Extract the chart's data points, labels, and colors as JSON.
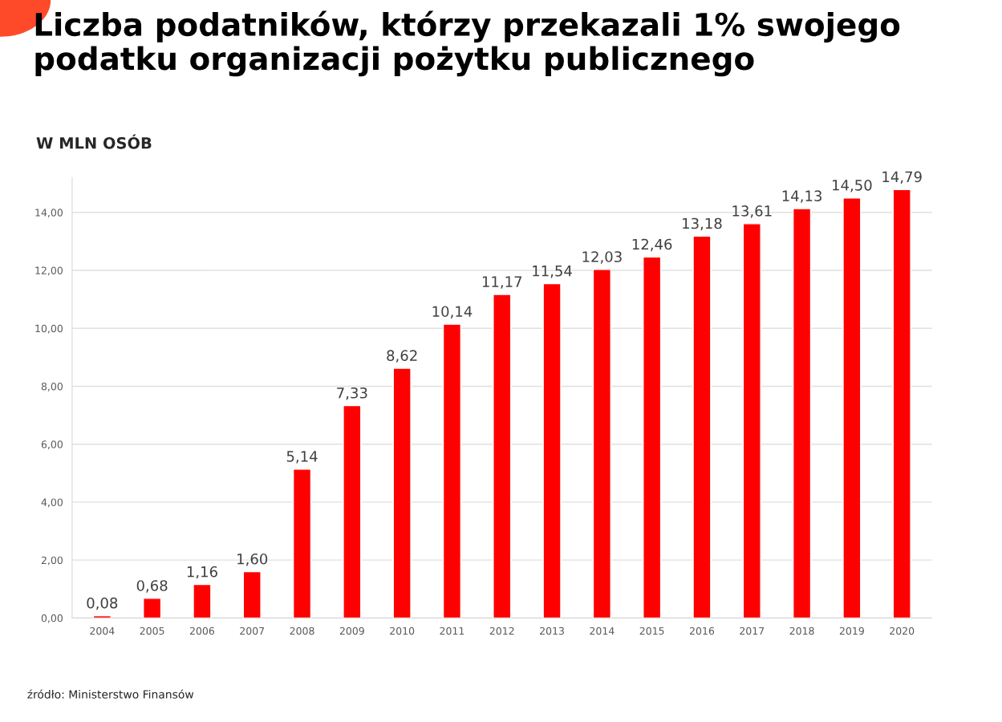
{
  "chart_data": {
    "type": "bar",
    "title": "Liczba podatników, którzy przekazali 1% swojego\npodatku organizacji pożytku publicznego",
    "subtitle": "W MLN OSÓB",
    "annotations": [
      "źródło: Ministerstwo Finansów"
    ],
    "categories": [
      "2004",
      "2005",
      "2006",
      "2007",
      "2008",
      "2009",
      "2010",
      "2011",
      "2012",
      "2013",
      "2014",
      "2015",
      "2016",
      "2017",
      "2018",
      "2019",
      "2020"
    ],
    "values": [
      0.08,
      0.68,
      1.16,
      1.6,
      5.14,
      7.33,
      8.62,
      10.14,
      11.17,
      11.54,
      12.03,
      12.46,
      13.18,
      13.61,
      14.13,
      14.5,
      14.79
    ],
    "value_labels": [
      "0,08",
      "0,68",
      "1,16",
      "1,60",
      "5,14",
      "7,33",
      "8,62",
      "10,14",
      "11,17",
      "11,54",
      "12,03",
      "12,46",
      "13,18",
      "13,61",
      "14,13",
      "14,50",
      "14,79"
    ],
    "color": "#ff0000",
    "ylim": [
      0,
      15.2
    ],
    "yticks": [
      {
        "value": 0,
        "label": "0,00"
      },
      {
        "value": 2,
        "label": "2,00"
      },
      {
        "value": 4,
        "label": "4,00"
      },
      {
        "value": 6,
        "label": "6,00"
      },
      {
        "value": 8,
        "label": "8,00"
      },
      {
        "value": 10,
        "label": "10,00"
      },
      {
        "value": 12,
        "label": "12,00"
      },
      {
        "value": 14,
        "label": "14,00"
      }
    ],
    "grid": "y"
  }
}
